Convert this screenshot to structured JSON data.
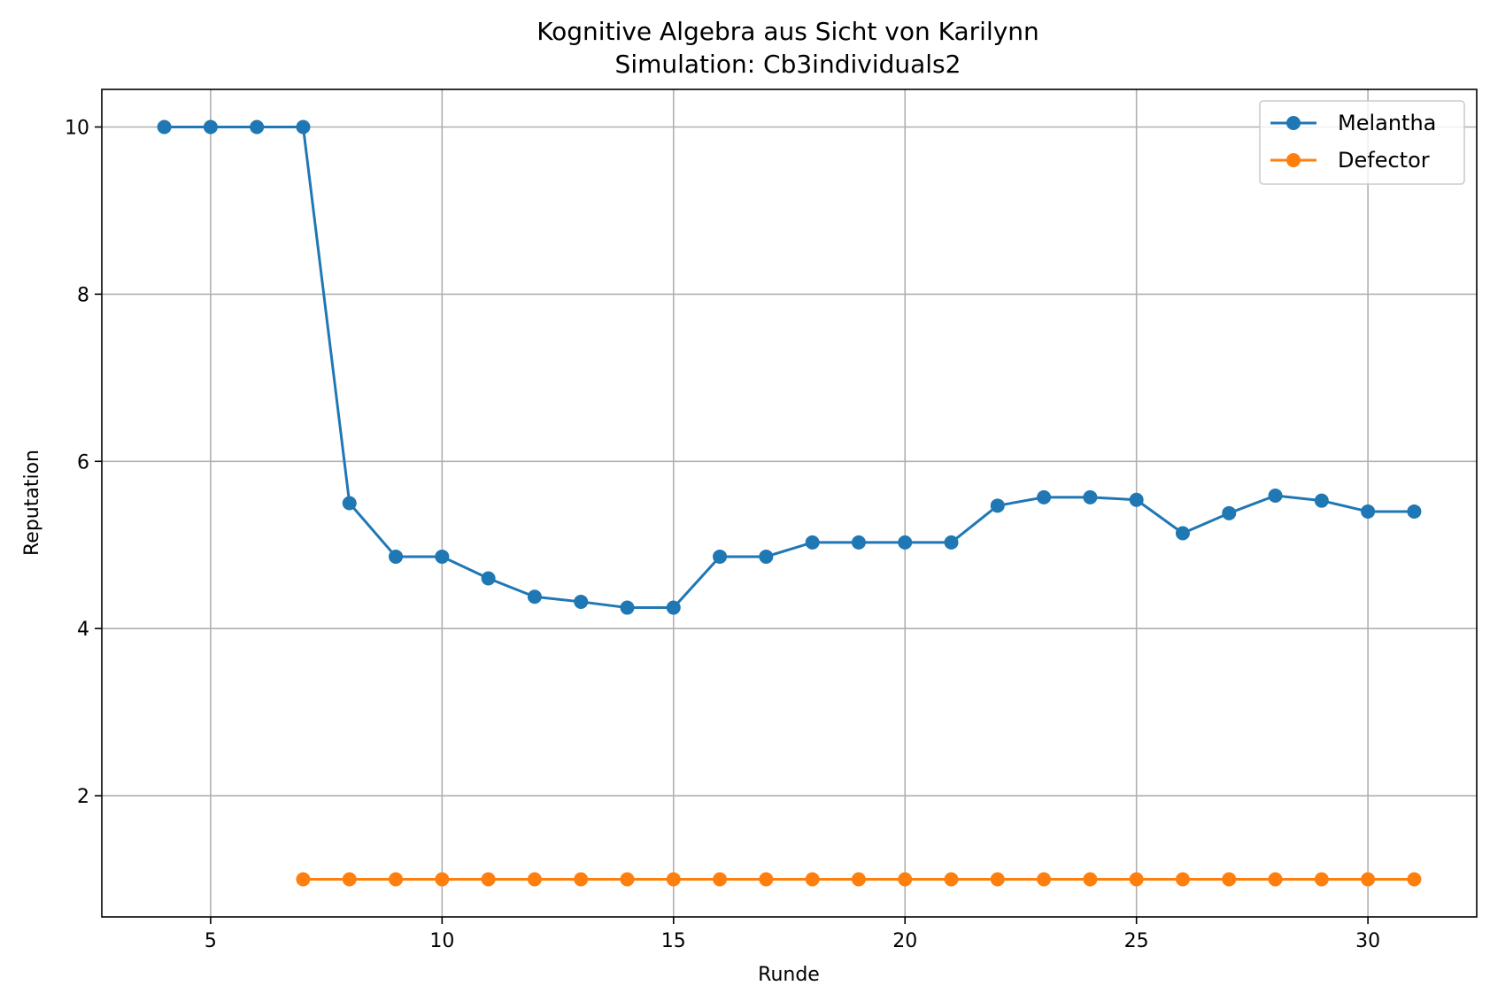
{
  "chart_data": {
    "type": "line",
    "title": "Kognitive Algebra aus Sicht von Karilynn",
    "subtitle": "Simulation: Cb3individuals2",
    "xlabel": "Runde",
    "ylabel": "Reputation",
    "xlim": [
      2.65,
      32.35
    ],
    "ylim": [
      0.55,
      10.45
    ],
    "xticks": [
      5,
      10,
      15,
      20,
      25,
      30
    ],
    "yticks": [
      2,
      4,
      6,
      8,
      10
    ],
    "grid": true,
    "legend_position": "top-right",
    "series": [
      {
        "name": "Melantha",
        "color": "#1f77b4",
        "x": [
          4,
          5,
          6,
          7,
          8,
          9,
          10,
          11,
          12,
          13,
          14,
          15,
          16,
          17,
          18,
          19,
          20,
          21,
          22,
          23,
          24,
          25,
          26,
          27,
          28,
          29,
          30,
          31
        ],
        "y": [
          10,
          10,
          10,
          10,
          5.5,
          4.86,
          4.86,
          4.6,
          4.38,
          4.32,
          4.25,
          4.25,
          4.86,
          4.86,
          5.03,
          5.03,
          5.03,
          5.03,
          5.47,
          5.57,
          5.57,
          5.54,
          5.14,
          5.38,
          5.59,
          5.53,
          5.4,
          5.4
        ]
      },
      {
        "name": "Defector",
        "color": "#ff7f0e",
        "x": [
          7,
          8,
          9,
          10,
          11,
          12,
          13,
          14,
          15,
          16,
          17,
          18,
          19,
          20,
          21,
          22,
          23,
          24,
          25,
          26,
          27,
          28,
          29,
          30,
          31
        ],
        "y": [
          1,
          1,
          1,
          1,
          1,
          1,
          1,
          1,
          1,
          1,
          1,
          1,
          1,
          1,
          1,
          1,
          1,
          1,
          1,
          1,
          1,
          1,
          1,
          1,
          1
        ]
      }
    ]
  }
}
